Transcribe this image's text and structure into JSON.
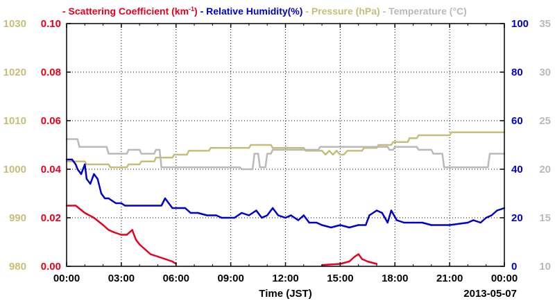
{
  "chart_data": {
    "type": "line",
    "xlabel": "Time (JST)",
    "date_label": "2013-05-07",
    "x_ticks": [
      "00:00",
      "03:00",
      "06:00",
      "09:00",
      "12:00",
      "15:00",
      "18:00",
      "21:00",
      "00:00"
    ],
    "xlim_hours": [
      0,
      24
    ],
    "grid": true,
    "axes": {
      "pressure": {
        "side": "left-outer",
        "color": "#c8bd78",
        "ylim": [
          980,
          1030
        ],
        "ticks": [
          "980",
          "990",
          "1000",
          "1010",
          "1020",
          "1030"
        ]
      },
      "scattering": {
        "side": "left-inner",
        "color": "#e8001c",
        "ylim": [
          0,
          0.1
        ],
        "ticks": [
          "0.00",
          "0.02",
          "0.04",
          "0.06",
          "0.08",
          "0.10"
        ]
      },
      "humidity": {
        "side": "right-inner",
        "color": "#0000cc",
        "ylim": [
          0,
          100
        ],
        "ticks": [
          "0",
          "20",
          "40",
          "60",
          "80",
          "100"
        ]
      },
      "temperature": {
        "side": "right-outer",
        "color": "#b9b9b9",
        "ylim": [
          10,
          35
        ],
        "ticks": [
          "10",
          "15",
          "20",
          "25",
          "30",
          "35"
        ]
      }
    },
    "legend": [
      {
        "dash": "-",
        "label": "Scattering Coefficient (km",
        "sup": "-1",
        "close": ")",
        "color": "#e8001c"
      },
      {
        "dash": "-",
        "label": "Relative Humidity(%)",
        "color": "#0000cc"
      },
      {
        "dash": "-",
        "label": "Pressure (hPa)",
        "color": "#c8bd78"
      },
      {
        "dash": "-",
        "label": "Temperature (°C)",
        "color": "#b9b9b9"
      }
    ],
    "series": [
      {
        "name": "Pressure (hPa)",
        "axis": "pressure",
        "color": "#c8bd78",
        "x": [
          0,
          1.0,
          1.1,
          2.3,
          2.4,
          3.3,
          3.4,
          4.0,
          4.1,
          4.8,
          4.9,
          5.8,
          5.9,
          6.6,
          6.7,
          7.8,
          7.9,
          10.0,
          10.1,
          11.2,
          11.3,
          13.0,
          13.1,
          14.0,
          14.2,
          14.4,
          14.6,
          14.8,
          15.0,
          15.2,
          15.4,
          16.2,
          16.3,
          17.0,
          17.1,
          17.8,
          17.9,
          18.7,
          18.8,
          19.2,
          19.3,
          21.0,
          21.1,
          24.0
        ],
        "values": [
          1001.6,
          1001.6,
          1001.0,
          1001.0,
          1000.4,
          1000.4,
          1001.0,
          1001.0,
          1001.6,
          1001.6,
          1002.4,
          1002.4,
          1003.0,
          1003.0,
          1003.8,
          1003.8,
          1004.4,
          1004.4,
          1005.0,
          1005.0,
          1004.4,
          1004.4,
          1003.8,
          1003.8,
          1003.0,
          1003.8,
          1003.0,
          1003.8,
          1003.0,
          1003.0,
          1003.8,
          1003.8,
          1004.4,
          1004.4,
          1005.0,
          1005.0,
          1005.6,
          1005.6,
          1006.4,
          1006.4,
          1007.0,
          1007.0,
          1007.6,
          1007.6
        ]
      },
      {
        "name": "Temperature (°C)",
        "axis": "temperature",
        "color": "#b9b9b9",
        "x": [
          0,
          0.6,
          0.7,
          2.2,
          2.3,
          3.3,
          3.4,
          4.0,
          4.1,
          4.8,
          4.9,
          5.1,
          5.2,
          9.5,
          9.6,
          10.2,
          10.3,
          10.5,
          10.6,
          10.9,
          11.0,
          11.2,
          11.3,
          13.8,
          13.9,
          17.6,
          17.7,
          17.9,
          18.0,
          19.2,
          19.3,
          20.0,
          20.1,
          20.6,
          20.7,
          23.1,
          23.2,
          24.0
        ],
        "values": [
          23.1,
          23.1,
          22.3,
          22.3,
          21.6,
          21.6,
          22.0,
          22.0,
          21.6,
          21.6,
          22.0,
          22.0,
          20.2,
          20.2,
          20.0,
          20.0,
          21.6,
          21.6,
          20.2,
          20.2,
          21.6,
          21.6,
          22.0,
          22.0,
          22.3,
          22.3,
          22.0,
          22.0,
          22.3,
          22.3,
          22.0,
          22.0,
          21.6,
          21.6,
          20.2,
          20.2,
          21.6,
          21.6
        ]
      },
      {
        "name": "Relative Humidity(%)",
        "axis": "humidity",
        "color": "#0000cc",
        "x": [
          0,
          0.3,
          0.5,
          0.6,
          0.8,
          1.0,
          1.1,
          1.3,
          1.5,
          1.7,
          1.9,
          2.1,
          2.3,
          2.5,
          2.7,
          3.0,
          3.2,
          5.2,
          5.4,
          5.6,
          5.8,
          6.5,
          6.8,
          7.2,
          7.7,
          8.2,
          8.5,
          9.2,
          9.6,
          10.0,
          10.4,
          10.7,
          11.0,
          11.3,
          11.6,
          12.0,
          12.3,
          12.7,
          13.0,
          13.3,
          13.7,
          14.0,
          14.5,
          15.0,
          15.5,
          16.0,
          16.4,
          16.6,
          17.0,
          17.3,
          17.6,
          17.8,
          18.1,
          18.5,
          19.0,
          19.5,
          20.0,
          21.0,
          22.0,
          22.3,
          22.7,
          23.0,
          23.3,
          23.6,
          24.0
        ],
        "values": [
          44,
          44,
          42,
          40,
          38,
          42,
          36,
          34,
          38,
          36,
          30,
          28,
          28,
          27,
          26,
          26,
          25,
          25,
          28,
          26,
          24,
          24,
          22,
          22,
          21,
          21,
          20,
          20,
          22,
          21,
          23,
          20,
          21,
          24,
          21,
          20,
          21,
          19,
          21,
          18,
          18,
          17,
          16,
          17,
          16,
          17,
          17,
          21,
          23,
          22,
          18,
          23,
          19,
          18,
          18,
          18,
          17,
          17,
          18,
          19,
          18,
          20,
          21,
          23,
          24
        ]
      },
      {
        "name": "Scattering Coefficient (km-1)",
        "axis": "scattering",
        "color": "#e8001c",
        "x": [
          0,
          0.5,
          1.0,
          1.5,
          2.0,
          2.3,
          2.6,
          3.0,
          3.3,
          3.6,
          3.8,
          4.0,
          4.3,
          4.6,
          5.0,
          5.4,
          5.8,
          6.0
        ],
        "values": [
          0.025,
          0.025,
          0.022,
          0.02,
          0.017,
          0.015,
          0.014,
          0.013,
          0.013,
          0.015,
          0.011,
          0.009,
          0.007,
          0.005,
          0.004,
          0.003,
          0.002,
          0.001
        ]
      },
      {
        "name": "Scattering Coefficient (km-1)",
        "axis": "scattering",
        "color": "#e8001c",
        "x": [
          14.0,
          14.5,
          15.0,
          15.5,
          15.8,
          16.0,
          16.2,
          16.5,
          17.0
        ],
        "values": [
          0.0005,
          0.0008,
          0.001,
          0.002,
          0.004,
          0.005,
          0.003,
          0.002,
          0.001
        ]
      }
    ]
  }
}
